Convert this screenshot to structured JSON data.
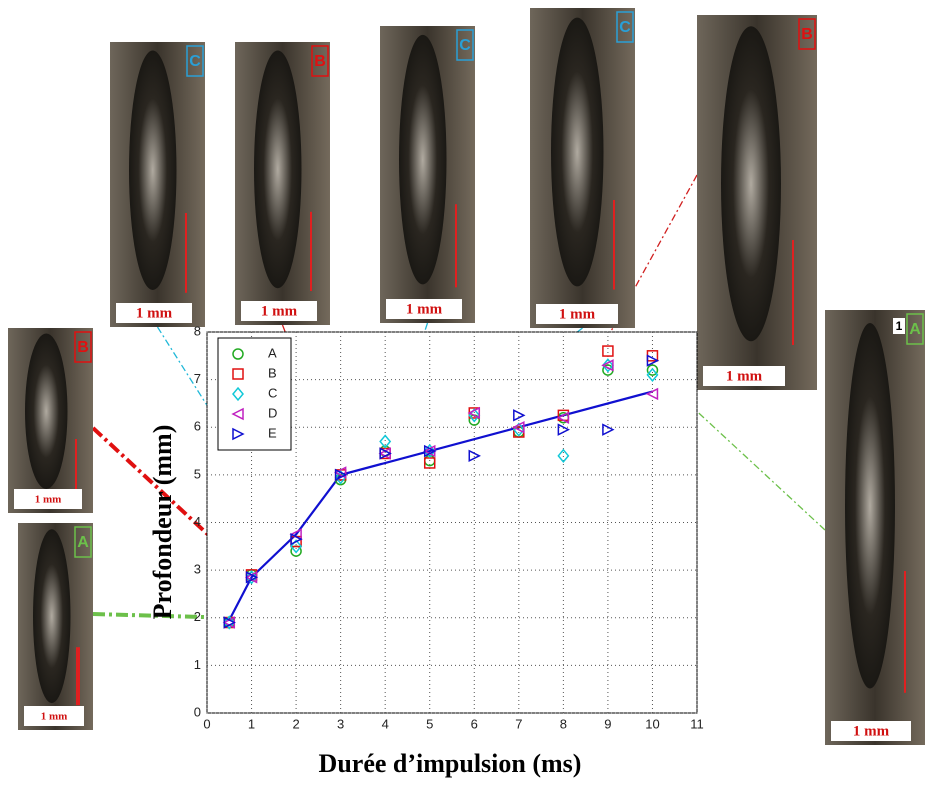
{
  "chart_data": {
    "type": "scatter",
    "x_label": "Durée d’impulsion (ms)",
    "y_label": "Profondeur (mm)",
    "xlim": [
      0,
      11
    ],
    "xticks": [
      0,
      1,
      2,
      3,
      4,
      5,
      6,
      7,
      8,
      9,
      10,
      11
    ],
    "ylim": [
      0,
      8
    ],
    "yticks": [
      0,
      1,
      2,
      3,
      4,
      5,
      6,
      7,
      8
    ],
    "grid": true,
    "legend": "upper left",
    "x": [
      0.5,
      1,
      2,
      3,
      4,
      5,
      6,
      7,
      8,
      9,
      10
    ],
    "series": [
      {
        "name": "A",
        "color": "#22aa22",
        "marker": "circle",
        "values": [
          1.9,
          2.9,
          3.4,
          4.9,
          5.5,
          5.3,
          6.15,
          5.9,
          6.2,
          7.2,
          7.2
        ]
      },
      {
        "name": "B",
        "color": "#e01010",
        "marker": "square",
        "values": [
          1.9,
          2.9,
          3.6,
          5.0,
          5.45,
          5.25,
          6.3,
          5.9,
          6.25,
          7.6,
          7.5
        ]
      },
      {
        "name": "C",
        "color": "#10c8d8",
        "marker": "diamond",
        "values": [
          1.9,
          2.85,
          3.5,
          4.95,
          5.7,
          5.5,
          6.25,
          5.95,
          5.4,
          7.3,
          7.1
        ]
      },
      {
        "name": "D",
        "color": "#c020c0",
        "marker": "triangle-left",
        "values": [
          1.9,
          2.85,
          3.75,
          5.05,
          5.45,
          5.5,
          6.3,
          6.0,
          6.2,
          7.3,
          6.7
        ]
      },
      {
        "name": "E",
        "color": "#1010d0",
        "marker": "triangle-right",
        "values": [
          1.9,
          2.85,
          3.65,
          5.0,
          5.45,
          5.5,
          5.4,
          6.25,
          5.95,
          5.95,
          7.4
        ]
      }
    ],
    "trend": {
      "color": "#1010d0",
      "x": [
        0.5,
        1,
        2,
        3,
        10
      ],
      "values": [
        1.95,
        2.85,
        3.75,
        5.0,
        6.75
      ]
    }
  },
  "micrographs": [
    {
      "label": "C",
      "label_color": "#2a9fd6",
      "scale": "1 mm"
    },
    {
      "label": "B",
      "label_color": "#e01010",
      "scale": "1 mm"
    },
    {
      "label": "C",
      "label_color": "#2a9fd6",
      "scale": "1 mm"
    },
    {
      "label": "C",
      "label_color": "#2a9fd6",
      "scale": "1 mm"
    },
    {
      "label": "B",
      "label_color": "#e01010",
      "scale": "1 mm"
    },
    {
      "label": "B",
      "label_color": "#e01010",
      "scale": "1 mm"
    },
    {
      "label": "A",
      "label_color": "#6cc04a",
      "scale": "1 mm"
    },
    {
      "label": "A",
      "label_color": "#6cc04a",
      "scale": "1 mm",
      "tag": "1"
    }
  ]
}
